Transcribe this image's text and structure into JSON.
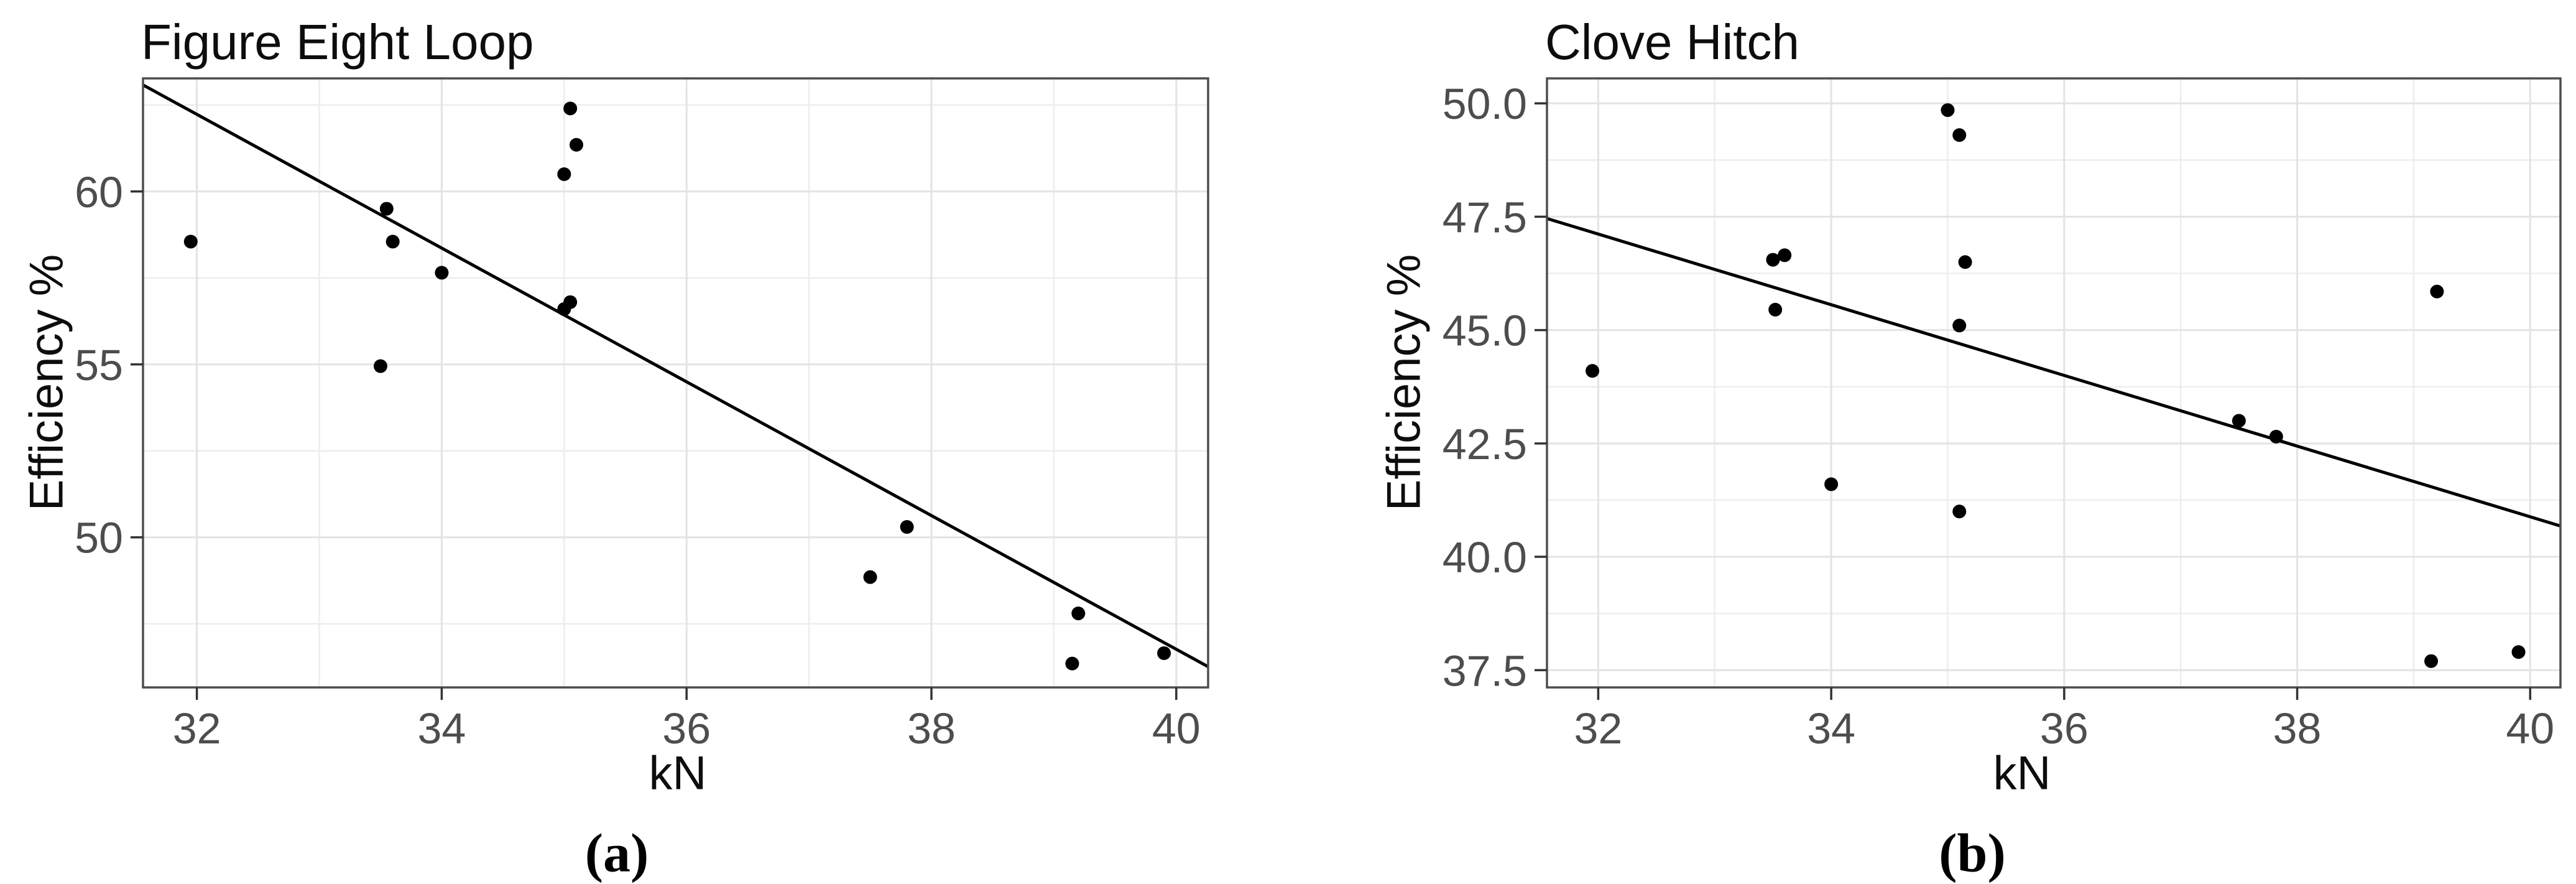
{
  "figure": {
    "background": "#ffffff",
    "subfigure_labels": [
      "(a)",
      "(b)"
    ]
  },
  "colors": {
    "background": "#ffffff",
    "panel_background": "#ffffff",
    "panel_border": "#4d4d4d",
    "grid_major": "#e3e3e3",
    "grid_minor": "#ededed",
    "tick_mark": "#333333",
    "tick_label": "#4d4d4d",
    "text": "#0d0d0d",
    "point": "#000000",
    "trend_line": "#000000"
  },
  "chart_data": [
    {
      "type": "scatter",
      "title": "Figure Eight Loop",
      "xlabel": "kN",
      "ylabel": "Efficiency %",
      "panel_label": "(a)",
      "grid": true,
      "legend": false,
      "xlim": [
        31.56,
        40.26
      ],
      "ylim": [
        45.66,
        63.27
      ],
      "x_major_ticks": [
        32,
        34,
        36,
        38,
        40
      ],
      "x_tick_labels": [
        "32",
        "34",
        "36",
        "38",
        "40"
      ],
      "x_minor_gridlines": [
        33,
        35,
        37,
        39
      ],
      "y_major_ticks": [
        50,
        55,
        60
      ],
      "y_tick_labels": [
        "50",
        "55",
        "60"
      ],
      "y_minor_gridlines": [
        47.5,
        52.5,
        57.5,
        62.5
      ],
      "points": [
        [
          31.95,
          58.55
        ],
        [
          33.5,
          54.95
        ],
        [
          33.55,
          59.5
        ],
        [
          33.6,
          58.55
        ],
        [
          34.0,
          57.65
        ],
        [
          35.0,
          56.6
        ],
        [
          35.0,
          60.5
        ],
        [
          35.05,
          56.8
        ],
        [
          35.05,
          62.4
        ],
        [
          35.1,
          61.35
        ],
        [
          37.5,
          48.85
        ],
        [
          37.8,
          50.3
        ],
        [
          39.15,
          46.35
        ],
        [
          39.2,
          47.8
        ],
        [
          39.9,
          46.65
        ]
      ],
      "trend_line": {
        "x1": 31.56,
        "y1": 63.08,
        "x2": 40.26,
        "y2": 46.26
      }
    },
    {
      "type": "scatter",
      "title": "Clove Hitch",
      "xlabel": "kN",
      "ylabel": "Efficiency %",
      "panel_label": "(b)",
      "grid": true,
      "legend": false,
      "xlim": [
        31.56,
        40.26
      ],
      "ylim": [
        37.12,
        50.55
      ],
      "x_major_ticks": [
        32,
        34,
        36,
        38,
        40
      ],
      "x_tick_labels": [
        "32",
        "34",
        "36",
        "38",
        "40"
      ],
      "x_minor_gridlines": [
        33,
        35,
        37,
        39
      ],
      "y_major_ticks": [
        37.5,
        40.0,
        42.5,
        45.0,
        47.5,
        50.0
      ],
      "y_tick_labels": [
        "37.5",
        "40.0",
        "42.5",
        "45.0",
        "47.5",
        "50.0"
      ],
      "y_minor_gridlines": [
        38.75,
        41.25,
        43.75,
        46.25,
        48.75
      ],
      "points": [
        [
          31.95,
          44.1
        ],
        [
          33.5,
          46.55
        ],
        [
          33.52,
          45.45
        ],
        [
          33.6,
          46.65
        ],
        [
          34.0,
          41.6
        ],
        [
          35.0,
          49.85
        ],
        [
          35.1,
          41.0
        ],
        [
          35.1,
          45.1
        ],
        [
          35.1,
          49.3
        ],
        [
          35.15,
          46.5
        ],
        [
          37.5,
          43.0
        ],
        [
          37.82,
          42.65
        ],
        [
          39.15,
          37.7
        ],
        [
          39.2,
          45.85
        ],
        [
          39.9,
          37.9
        ]
      ],
      "trend_line": {
        "x1": 31.56,
        "y1": 47.46,
        "x2": 40.26,
        "y2": 40.68
      }
    }
  ]
}
